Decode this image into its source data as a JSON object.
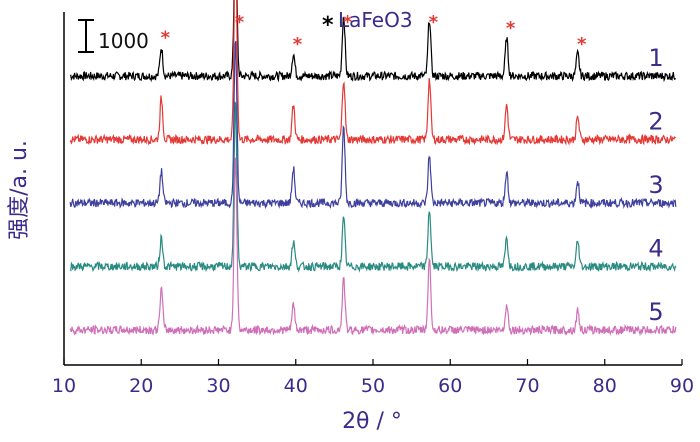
{
  "chart_data": {
    "type": "line",
    "xlabel": "2θ / °",
    "ylabel": "强度/a. u.",
    "xlim": [
      10,
      90
    ],
    "xticks": [
      "10",
      "20",
      "30",
      "40",
      "50",
      "60",
      "70",
      "80",
      "90"
    ],
    "legend": {
      "marker": "*",
      "label": "LaFeO3"
    },
    "scale_bar": {
      "label": "1000",
      "value": 1000
    },
    "grid": false,
    "peaks_2theta": [
      22.6,
      32.2,
      39.7,
      46.2,
      57.3,
      67.3,
      76.5
    ],
    "marked_peaks_2theta": [
      22.6,
      32.2,
      39.7,
      46.2,
      57.3,
      67.3,
      76.5
    ],
    "series": [
      {
        "name": "1",
        "color": "#000000",
        "baseline_offset": 4000,
        "peak_heights": [
          450,
          2200,
          350,
          950,
          900,
          600,
          350
        ]
      },
      {
        "name": "2",
        "color": "#e53935",
        "baseline_offset": 3000,
        "peak_heights": [
          650,
          3100,
          550,
          950,
          950,
          550,
          350
        ]
      },
      {
        "name": "3",
        "color": "#3f3f9f",
        "baseline_offset": 2000,
        "peak_heights": [
          500,
          2600,
          550,
          1200,
          750,
          500,
          350
        ]
      },
      {
        "name": "4",
        "color": "#2a8b82",
        "baseline_offset": 1000,
        "peak_heights": [
          450,
          2600,
          400,
          750,
          900,
          450,
          400
        ]
      },
      {
        "name": "5",
        "color": "#d070b8",
        "baseline_offset": 0,
        "peak_heights": [
          650,
          2800,
          400,
          800,
          1100,
          400,
          300
        ]
      }
    ]
  }
}
